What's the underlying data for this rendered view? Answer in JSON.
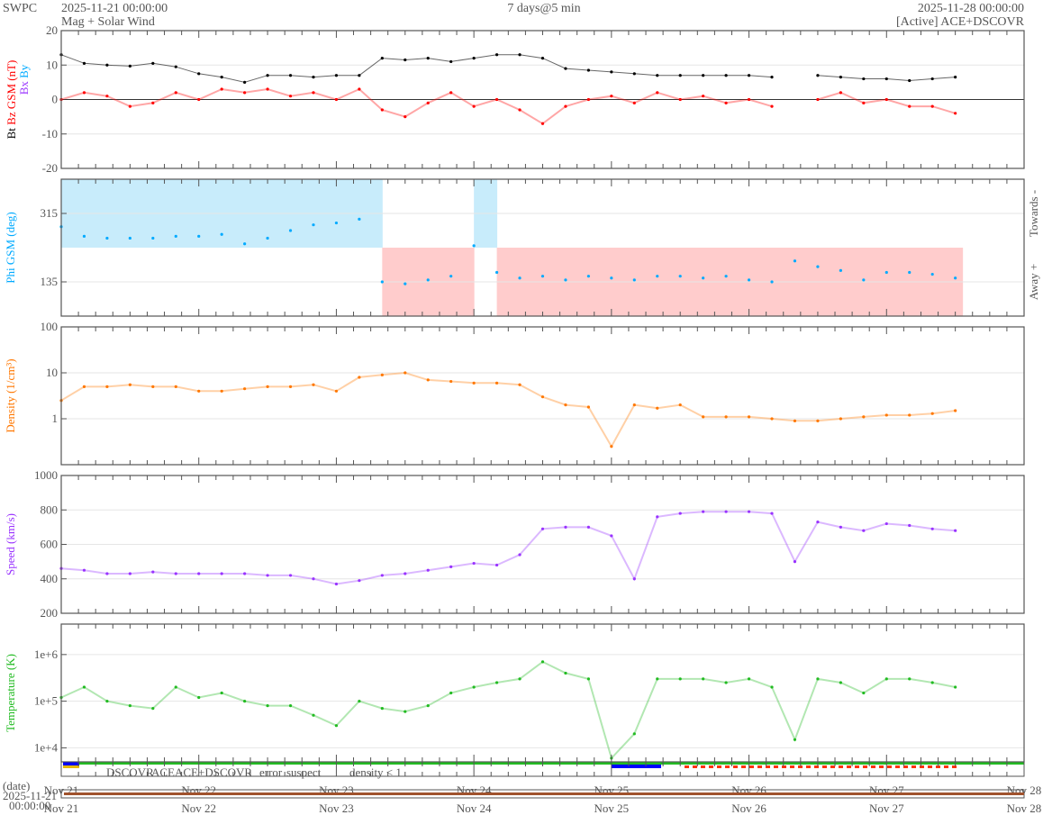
{
  "header": {
    "org": "SWPC",
    "start": "2025-11-21 00:00:00",
    "subtitle": "Mag + Solar Wind",
    "span": "7 days@5 min",
    "end": "2025-11-28 00:00:00",
    "source": "[Active] ACE+DSCOVR"
  },
  "date_axis": {
    "label": "(date)",
    "start_date": "2025-11-21",
    "start_time": "00:00:00"
  },
  "colors": {
    "bt": "#000000",
    "bz": "#ff0000",
    "bx": "#9933ff",
    "by": "#00aaff",
    "density": "#ff7700",
    "speed": "#9933ff",
    "temperature": "#22bb22",
    "towards": "#c8ecfb",
    "away": "#ffcccc",
    "date_bar": "#a0522d"
  },
  "chart_data": {
    "type": "line",
    "title": "Mag + Solar Wind",
    "xlim": [
      "2025-11-21T00:00",
      "2025-11-28T00:00"
    ],
    "x_tick_labels": [
      "Nov 21",
      "Nov 22",
      "Nov 23",
      "Nov 24",
      "Nov 25",
      "Nov 26",
      "Nov 27",
      "Nov 28"
    ],
    "times": [
      "2025-11-21T00:00",
      "2025-11-21T04:00",
      "2025-11-21T08:00",
      "2025-11-21T12:00",
      "2025-11-21T16:00",
      "2025-11-21T20:00",
      "2025-11-22T00:00",
      "2025-11-22T04:00",
      "2025-11-22T08:00",
      "2025-11-22T12:00",
      "2025-11-22T16:00",
      "2025-11-22T20:00",
      "2025-11-23T00:00",
      "2025-11-23T04:00",
      "2025-11-23T08:00",
      "2025-11-23T12:00",
      "2025-11-23T16:00",
      "2025-11-23T20:00",
      "2025-11-24T00:00",
      "2025-11-24T04:00",
      "2025-11-24T08:00",
      "2025-11-24T12:00",
      "2025-11-24T16:00",
      "2025-11-24T20:00",
      "2025-11-25T00:00",
      "2025-11-25T04:00",
      "2025-11-25T08:00",
      "2025-11-25T12:00",
      "2025-11-25T16:00",
      "2025-11-25T20:00",
      "2025-11-26T00:00",
      "2025-11-26T04:00",
      "2025-11-26T08:00",
      "2025-11-26T12:00",
      "2025-11-26T16:00",
      "2025-11-26T20:00",
      "2025-11-27T00:00",
      "2025-11-27T04:00",
      "2025-11-27T08:00",
      "2025-11-27T12:00"
    ],
    "panels": [
      {
        "id": "mag",
        "ylabel_parts": [
          "Bt",
          "Bz GSM (nT)"
        ],
        "ylabel_sub": [
          "Bx",
          "By"
        ],
        "yscale": "linear",
        "ylim": [
          -20,
          20
        ],
        "yticks": [
          -20,
          -10,
          0,
          10,
          20
        ],
        "tick_labels": [
          "-20",
          "-10",
          "0",
          "10",
          "20"
        ],
        "zero_line": true,
        "series": [
          {
            "name": "Bt",
            "color": "#000000",
            "style": "dots",
            "values": [
              13,
              10.5,
              10,
              9.7,
              10.5,
              9.5,
              7.5,
              6.5,
              5,
              7,
              7,
              6.5,
              7,
              7,
              12,
              11.5,
              12,
              11,
              12,
              13,
              13,
              12,
              9,
              8.5,
              8,
              7.5,
              7,
              7,
              7,
              7,
              7,
              6.5,
              null,
              7,
              6.5,
              6,
              6,
              5.5,
              6,
              6.5
            ]
          },
          {
            "name": "Bz",
            "color": "#ff0000",
            "style": "line+dots",
            "values": [
              0,
              2,
              1,
              -2,
              -1,
              2,
              0,
              3,
              2,
              3,
              1,
              2,
              0,
              3,
              -3,
              -5,
              -1,
              2,
              -2,
              0,
              -3,
              -7,
              -2,
              0,
              1,
              -1,
              2,
              0,
              1,
              -1,
              0,
              -2,
              null,
              0,
              2,
              -1,
              0,
              -2,
              -2,
              -4
            ]
          }
        ]
      },
      {
        "id": "phi",
        "ylabel": "Phi GSM (deg)",
        "yscale": "linear",
        "ylim": [
          45,
          405
        ],
        "yticks": [
          135,
          315
        ],
        "tick_labels": [
          "135",
          "315"
        ],
        "boundary": 225,
        "right_labels": [
          "Towards -",
          "Away +"
        ],
        "series": [
          {
            "name": "Phi",
            "color": "#00aaff",
            "style": "dots",
            "values": [
              280,
              255,
              250,
              250,
              250,
              255,
              255,
              260,
              235,
              250,
              270,
              285,
              290,
              300,
              135,
              130,
              140,
              150,
              230,
              160,
              145,
              150,
              140,
              150,
              145,
              140,
              150,
              150,
              145,
              150,
              140,
              135,
              190,
              175,
              165,
              140,
              160,
              160,
              155,
              145
            ]
          }
        ]
      },
      {
        "id": "density",
        "ylabel": "Density (1/cm³)",
        "yscale": "log",
        "ylim": [
          0.1,
          100
        ],
        "yticks": [
          1,
          10,
          100
        ],
        "tick_labels": [
          "1",
          "10",
          "100"
        ],
        "series": [
          {
            "name": "Density",
            "color": "#ff7700",
            "style": "line+dots",
            "values": [
              2.5,
              5,
              5,
              5.5,
              5,
              5,
              4,
              4,
              4.5,
              5,
              5,
              5.5,
              4,
              8,
              9,
              10,
              7,
              6.5,
              6,
              6,
              5.5,
              3,
              2,
              1.8,
              0.25,
              2,
              1.7,
              2,
              1.1,
              1.1,
              1.1,
              1,
              0.9,
              0.9,
              1,
              1.1,
              1.2,
              1.2,
              1.3,
              1.5
            ]
          }
        ]
      },
      {
        "id": "speed",
        "ylabel": "Speed (km/s)",
        "yscale": "linear",
        "ylim": [
          200,
          1000
        ],
        "yticks": [
          200,
          400,
          600,
          800,
          1000
        ],
        "tick_labels": [
          "200",
          "400",
          "600",
          "800",
          "1000"
        ],
        "series": [
          {
            "name": "Speed",
            "color": "#9933ff",
            "style": "line+dots",
            "values": [
              460,
              450,
              430,
              430,
              440,
              430,
              430,
              430,
              430,
              420,
              420,
              400,
              370,
              390,
              420,
              430,
              450,
              470,
              490,
              480,
              540,
              690,
              700,
              700,
              650,
              400,
              760,
              780,
              790,
              790,
              790,
              780,
              500,
              730,
              700,
              680,
              720,
              710,
              690,
              680
            ]
          }
        ]
      },
      {
        "id": "temperature",
        "ylabel": "Temperature (K)",
        "yscale": "log",
        "ylim": [
          5000,
          4500000
        ],
        "yticks": [
          10000,
          100000,
          1000000
        ],
        "tick_labels": [
          "1e+4",
          "1e+5",
          "1e+6"
        ],
        "series": [
          {
            "name": "Temperature",
            "color": "#22bb22",
            "style": "line+dots",
            "values": [
              120000,
              200000,
              100000,
              80000,
              70000,
              200000,
              120000,
              150000,
              100000,
              80000,
              80000,
              50000,
              30000,
              100000,
              70000,
              60000,
              80000,
              150000,
              200000,
              250000,
              300000,
              700000,
              400000,
              300000,
              6000,
              20000,
              300000,
              300000,
              300000,
              250000,
              300000,
              200000,
              15000,
              300000,
              250000,
              150000,
              300000,
              300000,
              250000,
              200000
            ]
          }
        ]
      }
    ],
    "source_legend": [
      {
        "label": "DSCOVR",
        "color": "#0000ff"
      },
      {
        "label": "ACE",
        "color": "#22bb22"
      },
      {
        "label": "ACE+DSCOVR",
        "color": "#ff00cc"
      },
      {
        "label": "error",
        "color": "#ff0000"
      },
      {
        "label": "suspect",
        "color": "#e6b800"
      },
      {
        "label": "density < 1",
        "color": "#ff7700"
      }
    ]
  }
}
